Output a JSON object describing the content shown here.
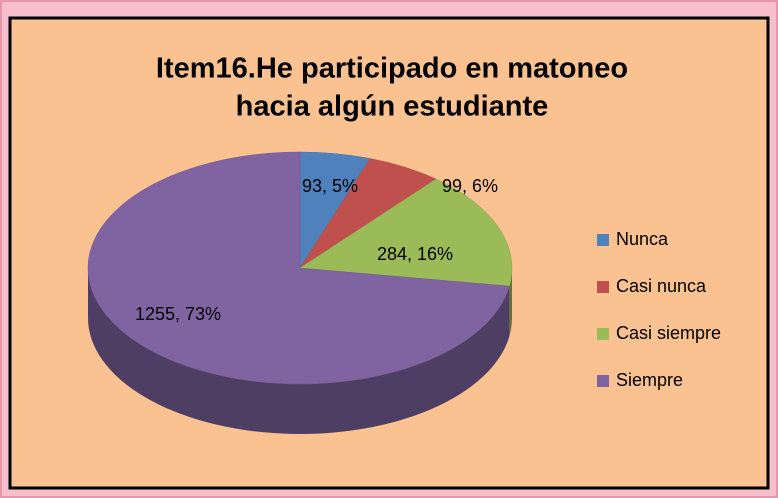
{
  "chart_data": {
    "type": "pie",
    "title": [
      "Item16.He participado en matoneo",
      "hacia algún estudiante"
    ],
    "categories": [
      "Nunca",
      "Casi nunca",
      "Casi siempre",
      "Siempre"
    ],
    "values": [
      93,
      99,
      284,
      1255
    ],
    "value_labels": [
      "93, 5%",
      "99, 6%",
      "284, 16%",
      "1255, 73%"
    ],
    "colors": [
      "#4f81bd",
      "#c0504d",
      "#9bbb59",
      "#8064a2"
    ],
    "legend": "right"
  }
}
